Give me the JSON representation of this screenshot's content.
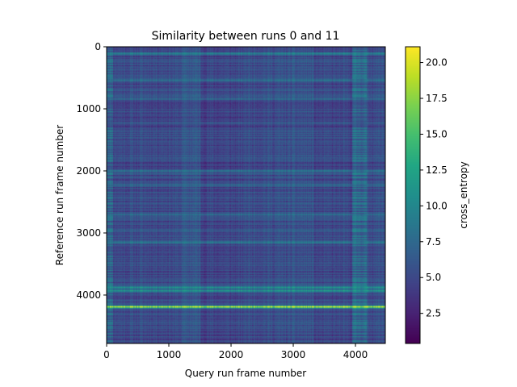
{
  "chart_data": {
    "type": "heatmap",
    "title": "Similarity between runs 0 and 11",
    "xlabel": "Query run frame number",
    "ylabel": "Reference run frame number",
    "colorbar_label": "cross_entropy",
    "colormap": "viridis",
    "xlim": [
      0,
      4480
    ],
    "ylim": [
      4780,
      0
    ],
    "xticks": [
      0,
      1000,
      2000,
      3000,
      4000
    ],
    "yticks": [
      0,
      1000,
      2000,
      3000,
      4000
    ],
    "clim": [
      0.4,
      21.1
    ],
    "colorbar_ticks": [
      2.5,
      5.0,
      7.5,
      10.0,
      12.5,
      15.0,
      17.5,
      20.0
    ],
    "colorbar_tick_labels": [
      "2.5",
      "5.0",
      "7.5",
      "10.0",
      "12.5",
      "15.0",
      "17.5",
      "20.0"
    ],
    "query_segment_boundaries": [
      100,
      1200,
      1500,
      2200,
      2950,
      3320,
      3950,
      4180
    ],
    "reference_bands": [
      {
        "frame": 110,
        "value": 9.5
      },
      {
        "frame": 540,
        "value": 8.5
      },
      {
        "frame": 840,
        "value": 7.5
      },
      {
        "frame": 1230,
        "value": 6.5
      },
      {
        "frame": 2000,
        "value": 8.5
      },
      {
        "frame": 2230,
        "value": 7.5
      },
      {
        "frame": 2700,
        "value": 8.0
      },
      {
        "frame": 3150,
        "value": 9.0
      },
      {
        "frame": 3880,
        "value": 11.0
      },
      {
        "frame": 3930,
        "value": 11.5
      },
      {
        "frame": 4190,
        "value": 20.0
      }
    ]
  }
}
